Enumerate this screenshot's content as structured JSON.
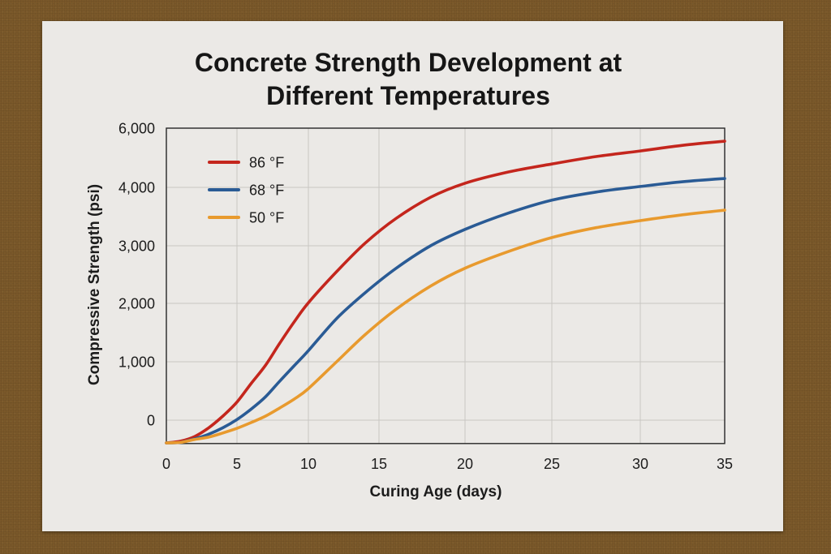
{
  "chart_data": {
    "type": "line",
    "title": "Concrete Strength Development at\nDifferent Temperatures",
    "xlabel": "Curing Age (days)",
    "ylabel": "Compressive Strength (psi)",
    "xlim": [
      0,
      35
    ],
    "ylim": [
      -400,
      6000
    ],
    "grid": true,
    "legend": {
      "position": "top-left"
    },
    "x_ticks": {
      "values": [
        0,
        5,
        10,
        15,
        20,
        25,
        30,
        35
      ],
      "labels": [
        "0",
        "5",
        "10",
        "15",
        "20",
        "25",
        "30",
        "35"
      ]
    },
    "y_ticks": {
      "values": [
        0,
        1000,
        2000,
        3000,
        4000,
        6000
      ],
      "labels": [
        "0",
        "1,000",
        "2,000",
        "3,000",
        "4,000",
        "6,000"
      ]
    },
    "x": [
      0,
      1,
      2,
      3,
      4,
      5,
      6,
      7,
      8,
      9,
      10,
      12,
      14,
      16,
      18,
      20,
      22.5,
      25,
      27.5,
      30,
      32.5,
      35
    ],
    "series": [
      {
        "name": "86 °F",
        "color": "#c4261d",
        "values": [
          -390,
          -360,
          -280,
          -130,
          70,
          310,
          630,
          940,
          1320,
          1680,
          2010,
          2550,
          3040,
          3470,
          3830,
          4140,
          4520,
          4790,
          5040,
          5230,
          5420,
          5560
        ]
      },
      {
        "name": "68 °F",
        "color": "#2a5b95",
        "values": [
          -390,
          -380,
          -320,
          -240,
          -130,
          10,
          190,
          400,
          670,
          930,
          1190,
          1740,
          2180,
          2610,
          3000,
          3280,
          3560,
          3780,
          3920,
          4030,
          4190,
          4300
        ]
      },
      {
        "name": "50 °F",
        "color": "#e89a2e",
        "values": [
          -390,
          -380,
          -330,
          -290,
          -220,
          -140,
          -40,
          70,
          210,
          360,
          540,
          1000,
          1460,
          1900,
          2300,
          2610,
          2900,
          3140,
          3310,
          3430,
          3530,
          3610
        ]
      }
    ]
  }
}
